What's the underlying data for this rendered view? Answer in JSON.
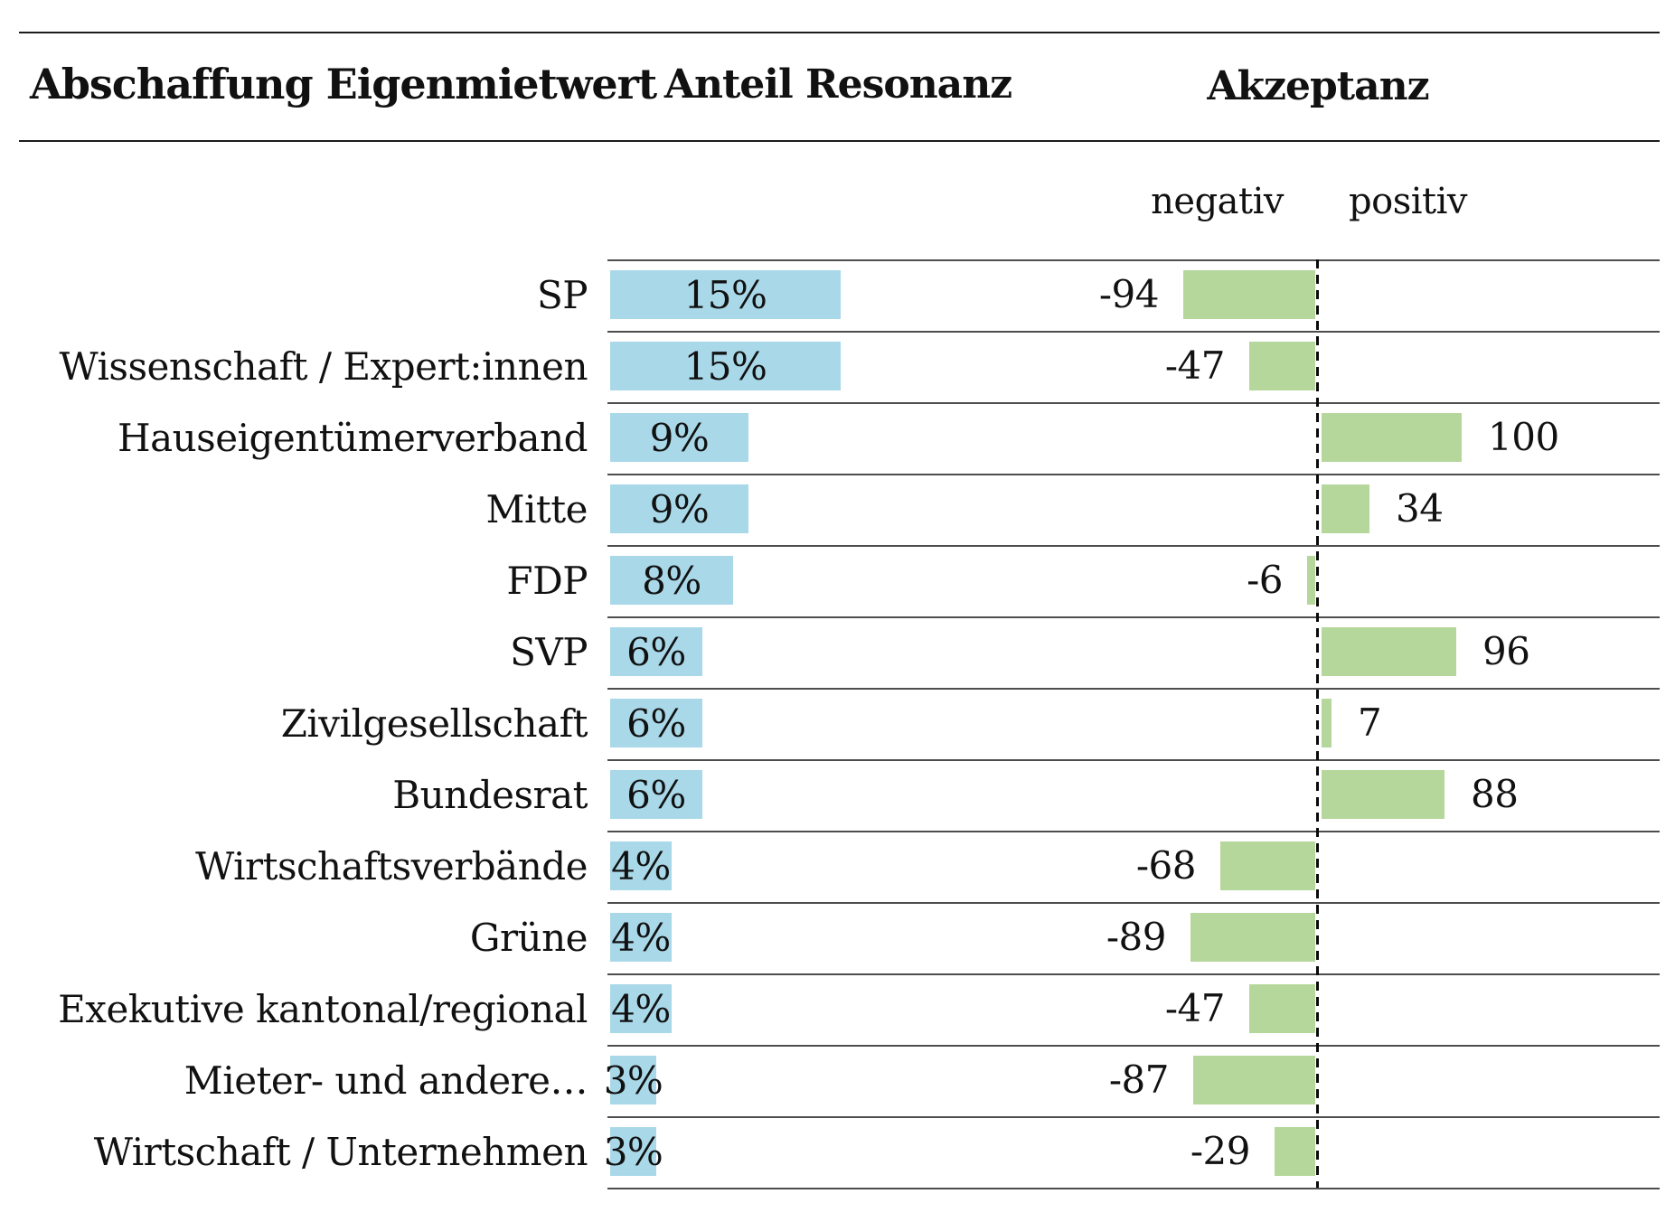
{
  "title": "Abschaffung Eigenmietwert",
  "column_headers": {
    "resonance": "Anteil Resonanz",
    "acceptance": "Akzeptanz"
  },
  "acceptance_subheaders": {
    "negative": "negativ",
    "positive": "positiv"
  },
  "colors": {
    "resonance_bar": "#a9d8e9",
    "acceptance_bar": "#b6d79b",
    "rule_line": "#1c1c1c",
    "row_separator": "#4d4d4d",
    "axis_dashed_line": "#0a0a0a",
    "text": "#111111"
  },
  "rows": [
    {
      "label": "SP",
      "resonance_label": "15%",
      "acceptance_label": "-94"
    },
    {
      "label": "Wissenschaft / Expert:innen",
      "resonance_label": "15%",
      "acceptance_label": "-47"
    },
    {
      "label": "Hauseigentümerverband",
      "resonance_label": "9%",
      "acceptance_label": "100"
    },
    {
      "label": "Mitte",
      "resonance_label": "9%",
      "acceptance_label": "34"
    },
    {
      "label": "FDP",
      "resonance_label": "8%",
      "acceptance_label": "-6"
    },
    {
      "label": "SVP",
      "resonance_label": "6%",
      "acceptance_label": "96"
    },
    {
      "label": "Zivilgesellschaft",
      "resonance_label": "6%",
      "acceptance_label": "7"
    },
    {
      "label": "Bundesrat",
      "resonance_label": "6%",
      "acceptance_label": "88"
    },
    {
      "label": "Wirtschaftsverbände",
      "resonance_label": "4%",
      "acceptance_label": "-68"
    },
    {
      "label": "Grüne",
      "resonance_label": "4%",
      "acceptance_label": "-89"
    },
    {
      "label": "Exekutive kantonal/regional",
      "resonance_label": "4%",
      "acceptance_label": "-47"
    },
    {
      "label": "Mieter- und andere…",
      "resonance_label": "3%",
      "acceptance_label": "-87"
    },
    {
      "label": "Wirtschaft / Unternehmen",
      "resonance_label": "3%",
      "acceptance_label": "-29"
    }
  ],
  "chart_data": {
    "type": "bar",
    "orientation": "horizontal",
    "title": "Abschaffung Eigenmietwert",
    "categories": [
      "SP",
      "Wissenschaft / Expert:innen",
      "Hauseigentümerverband",
      "Mitte",
      "FDP",
      "SVP",
      "Zivilgesellschaft",
      "Bundesrat",
      "Wirtschaftsverbände",
      "Grüne",
      "Exekutive kantonal/regional",
      "Mieter- und andere…",
      "Wirtschaft / Unternehmen"
    ],
    "series": [
      {
        "name": "Anteil Resonanz",
        "unit": "%",
        "values": [
          15,
          15,
          9,
          9,
          8,
          6,
          6,
          6,
          4,
          4,
          4,
          3,
          3
        ],
        "bar_color": "#a9d8e9",
        "value_labels_inside_bar": true
      },
      {
        "name": "Akzeptanz",
        "unit": "index",
        "values": [
          -94,
          -47,
          100,
          34,
          -6,
          96,
          7,
          88,
          -68,
          -89,
          -47,
          -87,
          -29
        ],
        "axis_range": [
          -100,
          100
        ],
        "bar_color": "#b6d79b",
        "diverging_axis_labels": [
          "negativ",
          "positiv"
        ],
        "zero_line_style": "dashed"
      }
    ],
    "legend": "none",
    "grid": "horizontal row separator lines"
  }
}
